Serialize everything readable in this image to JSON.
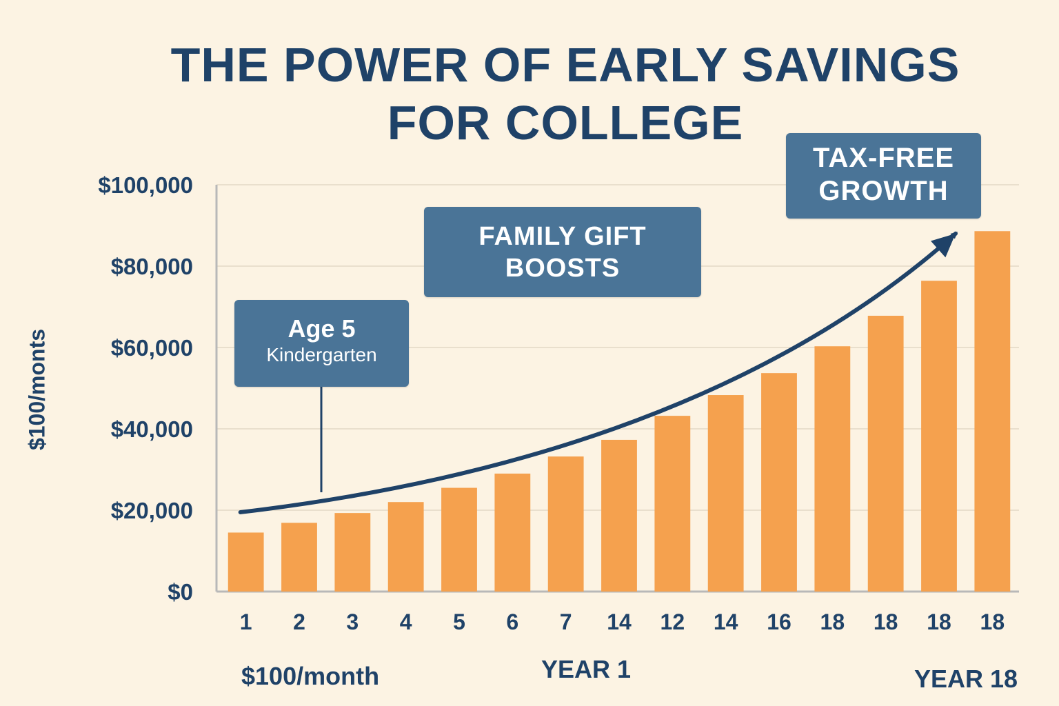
{
  "title": {
    "line1": "THE POWER OF EARLY SAVINGS",
    "line2": "FOR COLLEGE"
  },
  "chart_data": {
    "type": "bar",
    "title": "THE POWER OF EARLY SAVINGS FOR COLLEGE",
    "categories": [
      "1",
      "2",
      "3",
      "4",
      "5",
      "6",
      "7",
      "14",
      "12",
      "14",
      "16",
      "18",
      "18",
      "18",
      "18"
    ],
    "values": [
      14500,
      16900,
      19300,
      22000,
      25500,
      29000,
      33200,
      37300,
      43200,
      48300,
      53700,
      60300,
      67800,
      76400,
      88600
    ],
    "ylim": [
      0,
      100000
    ],
    "yticks": [
      0,
      20000,
      40000,
      60000,
      80000,
      100000
    ],
    "ytick_labels": [
      "$0",
      "$20,000",
      "$40,000",
      "$60,000",
      "$80,000",
      "$100,000"
    ],
    "ylabel": "$100/monts",
    "xlabel": "YEAR 1",
    "grid": true,
    "trend_arrow": {
      "from_value": 19500,
      "to_value": 88000
    }
  },
  "callouts": {
    "age": {
      "line1": "Age 5",
      "line2": "Kindergarten"
    },
    "gift": {
      "line1": "FAMILY GIFT",
      "line2": "BOOSTS"
    },
    "tax": {
      "line1": "TAX-FREE",
      "line2": "GROWTH"
    }
  },
  "footer": {
    "monthly": "$100/month",
    "year1": "YEAR 1",
    "year18": "YEAR 18"
  },
  "colors": {
    "background": "#fcf3e3",
    "bar": "#f5a14e",
    "text": "#1f4268",
    "callout": "#4a7497",
    "grid": "#e9dfcd",
    "arrow": "#1f4268"
  }
}
